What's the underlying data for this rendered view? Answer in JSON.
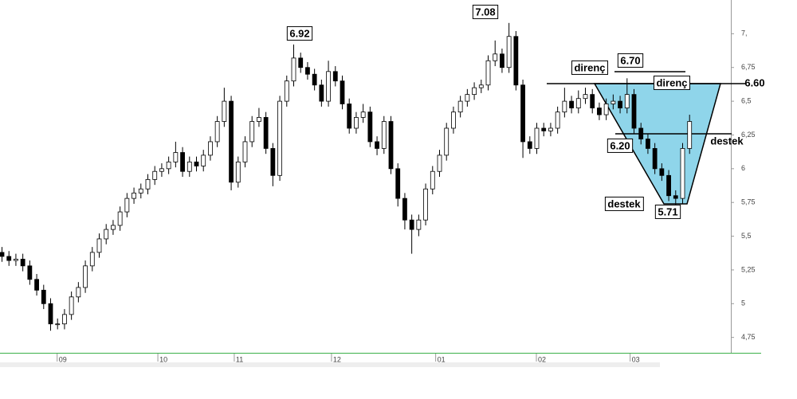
{
  "chart_data": {
    "type": "candlestick",
    "xlim": [
      0,
      105
    ],
    "ylim": [
      4.63,
      7.25
    ],
    "xticks": [
      {
        "value": 8,
        "label": "09"
      },
      {
        "value": 22.5,
        "label": "10"
      },
      {
        "value": 33.5,
        "label": "11"
      },
      {
        "value": 47.5,
        "label": "12"
      },
      {
        "value": 62.5,
        "label": "01"
      },
      {
        "value": 77,
        "label": "02"
      },
      {
        "value": 90.5,
        "label": "03"
      }
    ],
    "yticks": [
      {
        "value": 7,
        "label": "7,"
      },
      {
        "value": 6.75,
        "label": "6,75"
      },
      {
        "value": 6.5,
        "label": "6,5"
      },
      {
        "value": 6.25,
        "label": "6,25"
      },
      6,
      {
        "value": 5.75,
        "label": "5,75"
      },
      {
        "value": 5.5,
        "label": "5,5"
      },
      {
        "value": 5.25,
        "label": "5,25"
      },
      5,
      {
        "value": 4.75,
        "label": "4,75"
      }
    ],
    "up_color": "#ffffff",
    "down_color": "#000000",
    "open": [
      5.38,
      5.35,
      5.32,
      5.33,
      5.28,
      5.18,
      5.1,
      5.0,
      4.85,
      4.85,
      4.92,
      5.05,
      5.12,
      5.28,
      5.38,
      5.48,
      5.55,
      5.58,
      5.68,
      5.78,
      5.82,
      5.85,
      5.92,
      5.98,
      6.0,
      6.05,
      6.12,
      5.98,
      6.05,
      6.02,
      6.1,
      6.2,
      6.35,
      6.5,
      5.9,
      6.05,
      6.2,
      6.35,
      6.38,
      6.15,
      5.95,
      6.5,
      6.65,
      6.82,
      6.75,
      6.7,
      6.62,
      6.5,
      6.72,
      6.65,
      6.48,
      6.3,
      6.38,
      6.42,
      6.2,
      6.15,
      6.35,
      6.0,
      5.78,
      5.62,
      5.55,
      5.62,
      5.85,
      5.98,
      6.1,
      6.3,
      6.42,
      6.5,
      6.55,
      6.6,
      6.62,
      6.8,
      6.85,
      6.75,
      6.98,
      6.62,
      6.2,
      6.15,
      6.3,
      6.28,
      6.3,
      6.42,
      6.5,
      6.45,
      6.52,
      6.55,
      6.45,
      6.4,
      6.48,
      6.5,
      6.45,
      6.55,
      6.3,
      6.22,
      6.15,
      6.0,
      5.95,
      5.8,
      5.78,
      6.15
    ],
    "high": [
      5.42,
      5.39,
      5.37,
      5.37,
      5.32,
      5.22,
      5.14,
      5.04,
      4.89,
      4.96,
      5.09,
      5.16,
      5.32,
      5.42,
      5.52,
      5.59,
      5.62,
      5.72,
      5.82,
      5.86,
      5.89,
      5.96,
      6.02,
      6.04,
      6.09,
      6.2,
      6.16,
      6.09,
      6.09,
      6.14,
      6.24,
      6.39,
      6.6,
      6.54,
      6.09,
      6.24,
      6.39,
      6.45,
      6.42,
      6.19,
      6.54,
      6.69,
      6.92,
      6.86,
      6.79,
      6.74,
      6.66,
      6.8,
      6.76,
      6.69,
      6.52,
      6.42,
      6.48,
      6.46,
      6.24,
      6.39,
      6.39,
      6.04,
      5.82,
      5.66,
      5.66,
      5.89,
      6.02,
      6.14,
      6.34,
      6.46,
      6.54,
      6.59,
      6.64,
      6.66,
      6.84,
      6.95,
      6.89,
      7.08,
      7.02,
      6.66,
      6.24,
      6.34,
      6.34,
      6.34,
      6.46,
      6.6,
      6.54,
      6.58,
      6.6,
      6.59,
      6.49,
      6.52,
      6.55,
      6.54,
      6.67,
      6.59,
      6.34,
      6.26,
      6.19,
      6.04,
      5.99,
      5.84,
      6.19,
      6.4
    ],
    "low": [
      5.31,
      5.28,
      5.28,
      5.24,
      5.14,
      5.06,
      4.96,
      4.8,
      4.81,
      4.81,
      4.88,
      5.01,
      5.08,
      5.24,
      5.34,
      5.44,
      5.51,
      5.54,
      5.64,
      5.74,
      5.78,
      5.81,
      5.88,
      5.94,
      5.96,
      6.01,
      5.94,
      5.94,
      5.98,
      5.98,
      6.06,
      6.16,
      6.31,
      5.84,
      5.86,
      6.01,
      6.16,
      6.31,
      6.11,
      5.87,
      5.91,
      6.46,
      6.61,
      6.71,
      6.66,
      6.58,
      6.46,
      6.46,
      6.61,
      6.44,
      6.26,
      6.26,
      6.34,
      6.16,
      6.1,
      6.11,
      5.96,
      5.72,
      5.55,
      5.37,
      5.5,
      5.58,
      5.81,
      5.94,
      6.06,
      6.26,
      6.38,
      6.46,
      6.51,
      6.56,
      6.58,
      6.76,
      6.71,
      6.71,
      6.58,
      6.08,
      6.11,
      6.11,
      6.24,
      6.24,
      6.26,
      6.38,
      6.41,
      6.41,
      6.48,
      6.41,
      6.36,
      6.36,
      6.44,
      6.41,
      6.41,
      6.26,
      6.18,
      6.11,
      5.96,
      5.91,
      5.76,
      5.71,
      5.74,
      6.11
    ],
    "close": [
      5.35,
      5.32,
      5.33,
      5.28,
      5.18,
      5.1,
      5.0,
      4.85,
      4.85,
      4.92,
      5.05,
      5.12,
      5.28,
      5.38,
      5.48,
      5.55,
      5.58,
      5.68,
      5.78,
      5.82,
      5.85,
      5.92,
      5.98,
      6.0,
      6.05,
      6.12,
      5.98,
      6.05,
      6.02,
      6.1,
      6.2,
      6.35,
      6.5,
      5.9,
      6.05,
      6.2,
      6.35,
      6.38,
      6.15,
      5.95,
      6.5,
      6.65,
      6.82,
      6.75,
      6.7,
      6.62,
      6.5,
      6.72,
      6.65,
      6.48,
      6.3,
      6.38,
      6.42,
      6.2,
      6.15,
      6.35,
      6.0,
      5.78,
      5.62,
      5.55,
      5.62,
      5.85,
      5.98,
      6.1,
      6.3,
      6.42,
      6.5,
      6.55,
      6.6,
      6.62,
      6.8,
      6.85,
      6.75,
      6.98,
      6.62,
      6.2,
      6.15,
      6.3,
      6.28,
      6.3,
      6.42,
      6.5,
      6.45,
      6.52,
      6.55,
      6.45,
      6.4,
      6.48,
      6.5,
      6.45,
      6.55,
      6.3,
      6.22,
      6.15,
      6.0,
      5.95,
      5.8,
      5.78,
      6.15,
      6.35
    ],
    "annotations": [
      6.92,
      7.08,
      "direnç",
      {
        "value": 6.7,
        "label": "6.70"
      },
      "direnç",
      {
        "value": 6.6,
        "label": "6.60"
      },
      {
        "value": 6.2,
        "label": "6.20"
      },
      "destek",
      "destek",
      5.71
    ]
  }
}
